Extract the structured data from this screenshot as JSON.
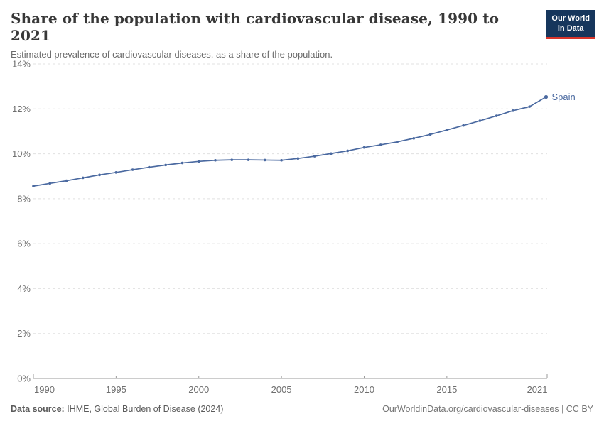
{
  "header": {
    "title": "Share of the population with cardiovascular disease, 1990 to 2021",
    "subtitle": "Estimated prevalence of cardiovascular diseases, as a share of the population.",
    "logo": {
      "line1": "Our World",
      "line2": "in Data"
    }
  },
  "chart_data": {
    "type": "line",
    "title": "Share of the population with cardiovascular disease, 1990 to 2021",
    "subtitle": "Estimated prevalence of cardiovascular diseases, as a share of the population.",
    "xlabel": "",
    "ylabel": "",
    "xlim": [
      1990,
      2021
    ],
    "ylim": [
      0,
      14
    ],
    "grid": "horizontal-dashed",
    "legend_position": "end-of-line-label",
    "series": [
      {
        "name": "Spain",
        "color": "#4a69a0",
        "x": [
          1990,
          1991,
          1992,
          1993,
          1994,
          1995,
          1996,
          1997,
          1998,
          1999,
          2000,
          2001,
          2002,
          2003,
          2004,
          2005,
          2006,
          2007,
          2008,
          2009,
          2010,
          2011,
          2012,
          2013,
          2014,
          2015,
          2016,
          2017,
          2018,
          2019,
          2020,
          2021
        ],
        "values": [
          8.56,
          8.68,
          8.8,
          8.93,
          9.06,
          9.17,
          9.29,
          9.4,
          9.5,
          9.59,
          9.66,
          9.71,
          9.73,
          9.73,
          9.72,
          9.71,
          9.79,
          9.89,
          10.01,
          10.13,
          10.28,
          10.4,
          10.53,
          10.69,
          10.86,
          11.06,
          11.26,
          11.47,
          11.69,
          11.92,
          12.1,
          12.53
        ]
      }
    ],
    "x_ticks": [
      {
        "year": 1990,
        "label": "1990"
      },
      {
        "year": 1995,
        "label": "1995"
      },
      {
        "year": 2000,
        "label": "2000"
      },
      {
        "year": 2005,
        "label": "2005"
      },
      {
        "year": 2010,
        "label": "2010"
      },
      {
        "year": 2015,
        "label": "2015"
      },
      {
        "year": 2021,
        "label": "2021"
      }
    ],
    "y_ticks": [
      {
        "value": 0,
        "label": "0%"
      },
      {
        "value": 2,
        "label": "2%"
      },
      {
        "value": 4,
        "label": "4%"
      },
      {
        "value": 6,
        "label": "6%"
      },
      {
        "value": 8,
        "label": "8%"
      },
      {
        "value": 10,
        "label": "10%"
      },
      {
        "value": 12,
        "label": "12%"
      },
      {
        "value": 14,
        "label": "14%"
      }
    ],
    "colors": {
      "line": "#4a69a0",
      "series_label": "#4a69a0",
      "gridline": "#e0e0e0",
      "axis": "#999999",
      "tick_label": "#6e6e6e"
    }
  },
  "footer": {
    "source_label": "Data source:",
    "source_text": " IHME, Global Burden of Disease (2024)",
    "credit": "OurWorldinData.org/cardiovascular-diseases | CC BY"
  }
}
